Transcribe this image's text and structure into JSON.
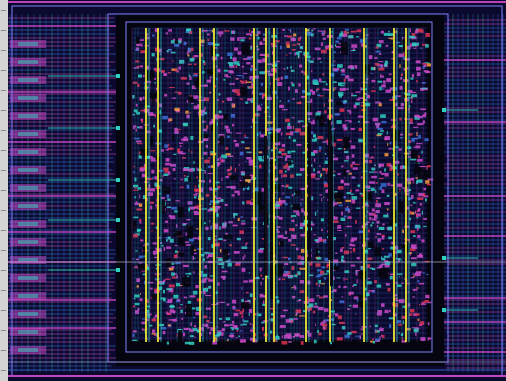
{
  "viewer": {
    "content": "ic-layout-view",
    "colors": {
      "background": "#0b0a2e",
      "metal1": "#3a6fd8",
      "metal2": "#d048c8",
      "metal3": "#30d0c0",
      "poly": "#e03050",
      "power_rail": "#e8e838",
      "via": "#ff9a3a",
      "boundary": "#8080ff",
      "fill_black": "#050510",
      "frame": "#c8c8c8"
    },
    "icons": {
      "left_strip": "ruler-strip"
    }
  }
}
